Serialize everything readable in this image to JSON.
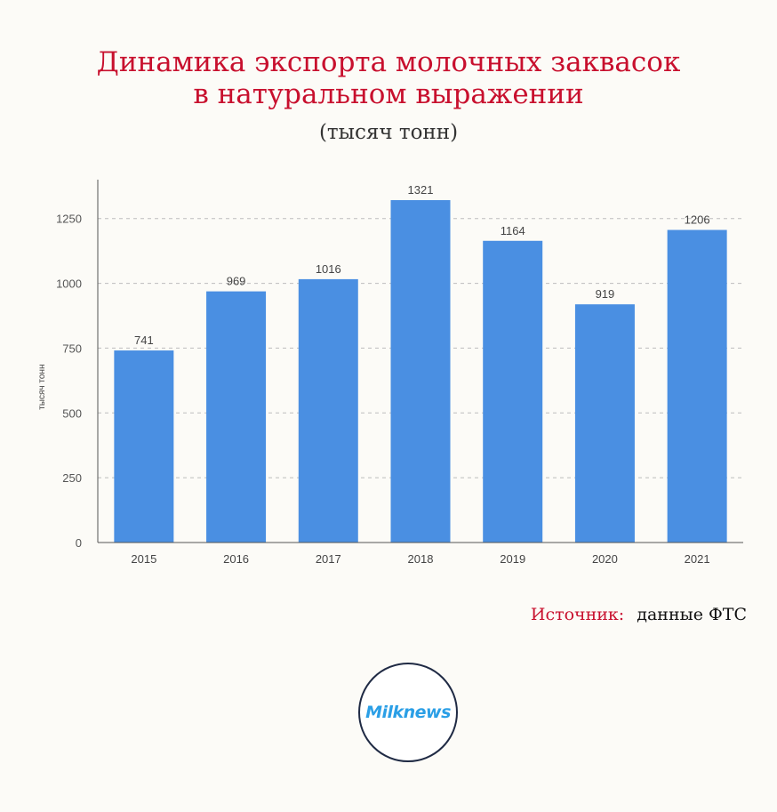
{
  "title_line1": "Динамика экспорта молочных заквасок",
  "title_line2": "в натуральном выражении",
  "subtitle": "(тысяч тонн)",
  "source": {
    "label": "Источник:",
    "value": "данные ФТС"
  },
  "logo_text": "Milknews",
  "colors": {
    "title": "#c8102e",
    "bar": "#4a8fe2",
    "logo": "#2b9fe6"
  },
  "chart_data": {
    "type": "bar",
    "categories": [
      "2015",
      "2016",
      "2017",
      "2018",
      "2019",
      "2020",
      "2021"
    ],
    "values": [
      741,
      969,
      1016,
      1321,
      1164,
      919,
      1206
    ],
    "ylabel": "тысяч тонн",
    "xlabel": "",
    "ylim": [
      0,
      1400
    ],
    "yticks": [
      0,
      250,
      500,
      750,
      1000,
      1250
    ],
    "grid": true,
    "data_labels": true
  }
}
